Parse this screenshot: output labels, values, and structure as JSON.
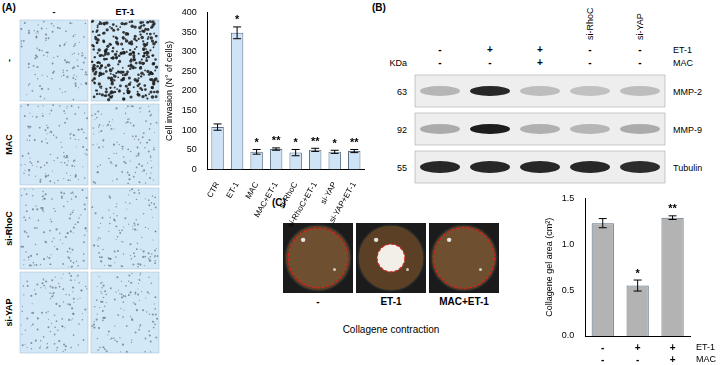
{
  "panels": {
    "A": {
      "label": "(A)",
      "images": {
        "columns": [
          "-",
          "ET-1"
        ],
        "rows": [
          "-",
          "MAC",
          "si-RhoC",
          "si-YAP"
        ]
      }
    },
    "B": {
      "label": "(B)",
      "unit_label": "KDa",
      "lane_groups": [
        null,
        null,
        null,
        "si-RhoC",
        "si-YAP"
      ],
      "conditions": [
        {
          "label": "ET-1",
          "values": [
            "-",
            "+",
            "+",
            "-",
            "-"
          ]
        },
        {
          "label": "MAC",
          "values": [
            "-",
            "-",
            "+",
            "-",
            "-"
          ]
        }
      ],
      "bands": [
        {
          "kda": 63,
          "name": "MMP-2"
        },
        {
          "kda": 92,
          "name": "MMP-9"
        },
        {
          "kda": 55,
          "name": "Tubulin"
        }
      ]
    },
    "C": {
      "label": "(C)",
      "images": {
        "labels": [
          "-",
          "ET-1",
          "MAC+ET-1"
        ],
        "caption": "Collagene contraction"
      }
    }
  },
  "chart_data": [
    {
      "type": "bar",
      "y_label": "Cell invasion (N° of cells)",
      "categories": [
        "CTR",
        "ET-1",
        "MAC",
        "MAC+ET-1",
        "si-RhoC",
        "si-RhoC+ET-1",
        "si-YAP",
        "si-YAP+ET-1"
      ],
      "values": [
        108,
        348,
        45,
        52,
        43,
        50,
        45,
        47
      ],
      "errors": [
        8,
        15,
        6,
        3,
        8,
        4,
        4,
        4
      ],
      "significance": [
        null,
        "*",
        "*",
        "**",
        "*",
        "**",
        "*",
        "**"
      ],
      "color": "#cfe3f7",
      "ylim": [
        0,
        400
      ],
      "yticks": [
        0,
        50,
        100,
        150,
        200,
        250,
        300,
        350,
        400
      ],
      "grid": false
    },
    {
      "type": "bar",
      "y_label": "Collagene gel area (cm²)",
      "categories": [
        null,
        null,
        null
      ],
      "values": [
        1.23,
        0.55,
        1.29
      ],
      "errors": [
        0.05,
        0.06,
        0.02
      ],
      "significance": [
        null,
        "*",
        "**"
      ],
      "conditions": [
        {
          "label": "ET-1",
          "values": [
            "-",
            "+",
            "+"
          ]
        },
        {
          "label": "MAC",
          "values": [
            "-",
            "-",
            "+"
          ]
        }
      ],
      "color": "#b3b3b3",
      "ylim": [
        0,
        1.5
      ],
      "yticks": [
        {
          "value": 0,
          "label": "0.0"
        },
        {
          "value": 0.5,
          "label": "0.5"
        },
        {
          "value": 1,
          "label": "1.0"
        },
        {
          "value": 1.5,
          "label": "1.5"
        }
      ],
      "grid": false
    }
  ]
}
